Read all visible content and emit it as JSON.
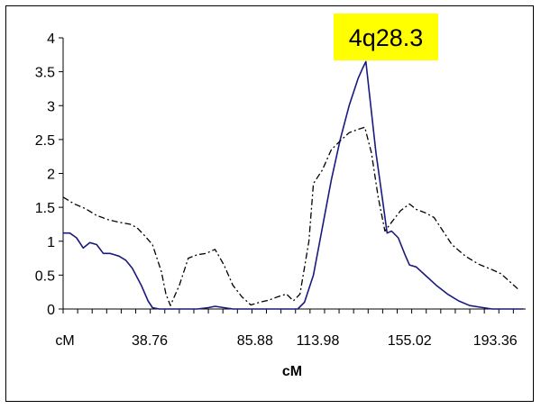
{
  "chart_data": {
    "type": "line",
    "title": "",
    "xlabel": "cM",
    "ylabel": "",
    "xlim": [
      0,
      207
    ],
    "ylim": [
      0,
      4
    ],
    "grid": false,
    "legend": "none",
    "y_ticks": [
      "0",
      "0.5",
      "1",
      "1.5",
      "2",
      "2.5",
      "3",
      "3.5",
      "4"
    ],
    "x_tick_labels": [
      {
        "x": 0,
        "label": "cM"
      },
      {
        "x": 38.76,
        "label": "38.76"
      },
      {
        "x": 85.88,
        "label": "85.88"
      },
      {
        "x": 113.98,
        "label": "113.98"
      },
      {
        "x": 155.02,
        "label": "155.02"
      },
      {
        "x": 193.36,
        "label": "193.36"
      }
    ],
    "annotation": {
      "text": "4q28.3",
      "background": "#ffff00"
    },
    "series": [
      {
        "style": "solid",
        "color": "#1a1a7e",
        "points": [
          [
            0,
            1.12
          ],
          [
            3,
            1.12
          ],
          [
            6,
            1.05
          ],
          [
            9,
            0.9
          ],
          [
            12,
            0.98
          ],
          [
            15,
            0.95
          ],
          [
            18,
            0.82
          ],
          [
            21,
            0.82
          ],
          [
            25,
            0.78
          ],
          [
            28,
            0.72
          ],
          [
            31,
            0.6
          ],
          [
            35,
            0.35
          ],
          [
            38,
            0.12
          ],
          [
            40,
            0.02
          ],
          [
            43,
            0
          ],
          [
            60,
            0
          ],
          [
            65,
            0.02
          ],
          [
            68,
            0.04
          ],
          [
            72,
            0.02
          ],
          [
            76,
            0
          ],
          [
            105,
            0
          ],
          [
            108,
            0.1
          ],
          [
            112,
            0.5
          ],
          [
            116,
            1.2
          ],
          [
            120,
            1.9
          ],
          [
            124,
            2.5
          ],
          [
            128,
            3.0
          ],
          [
            132,
            3.4
          ],
          [
            134,
            3.55
          ],
          [
            135.5,
            3.65
          ],
          [
            137,
            3.2
          ],
          [
            140,
            2.3
          ],
          [
            143,
            1.6
          ],
          [
            145,
            1.12
          ],
          [
            147,
            1.15
          ],
          [
            150,
            1.05
          ],
          [
            153,
            0.8
          ],
          [
            155,
            0.65
          ],
          [
            158,
            0.62
          ],
          [
            162,
            0.5
          ],
          [
            167,
            0.35
          ],
          [
            172,
            0.22
          ],
          [
            177,
            0.12
          ],
          [
            182,
            0.05
          ],
          [
            188,
            0.02
          ],
          [
            192,
            0
          ],
          [
            206,
            0
          ]
        ]
      },
      {
        "style": "dash-dot",
        "color": "#000000",
        "points": [
          [
            0,
            1.65
          ],
          [
            5,
            1.55
          ],
          [
            10,
            1.48
          ],
          [
            15,
            1.38
          ],
          [
            20,
            1.32
          ],
          [
            25,
            1.28
          ],
          [
            30,
            1.25
          ],
          [
            33,
            1.2
          ],
          [
            36,
            1.1
          ],
          [
            40,
            0.95
          ],
          [
            44,
            0.55
          ],
          [
            46,
            0.22
          ],
          [
            48,
            0.05
          ],
          [
            52,
            0.35
          ],
          [
            56,
            0.75
          ],
          [
            60,
            0.8
          ],
          [
            64,
            0.82
          ],
          [
            68,
            0.88
          ],
          [
            72,
            0.65
          ],
          [
            76,
            0.35
          ],
          [
            80,
            0.18
          ],
          [
            84,
            0.06
          ],
          [
            88,
            0.1
          ],
          [
            92,
            0.13
          ],
          [
            96,
            0.18
          ],
          [
            100,
            0.22
          ],
          [
            103,
            0.12
          ],
          [
            106,
            0.22
          ],
          [
            110,
            1.0
          ],
          [
            112,
            1.85
          ],
          [
            116,
            2.05
          ],
          [
            120,
            2.35
          ],
          [
            124,
            2.48
          ],
          [
            128,
            2.6
          ],
          [
            132,
            2.65
          ],
          [
            135,
            2.68
          ],
          [
            138,
            2.3
          ],
          [
            141,
            1.65
          ],
          [
            144,
            1.15
          ],
          [
            147,
            1.28
          ],
          [
            151,
            1.45
          ],
          [
            155,
            1.55
          ],
          [
            158,
            1.47
          ],
          [
            162,
            1.42
          ],
          [
            166,
            1.35
          ],
          [
            170,
            1.15
          ],
          [
            174,
            0.95
          ],
          [
            180,
            0.78
          ],
          [
            186,
            0.66
          ],
          [
            192,
            0.58
          ],
          [
            196,
            0.52
          ],
          [
            200,
            0.4
          ],
          [
            204,
            0.28
          ]
        ]
      }
    ]
  }
}
